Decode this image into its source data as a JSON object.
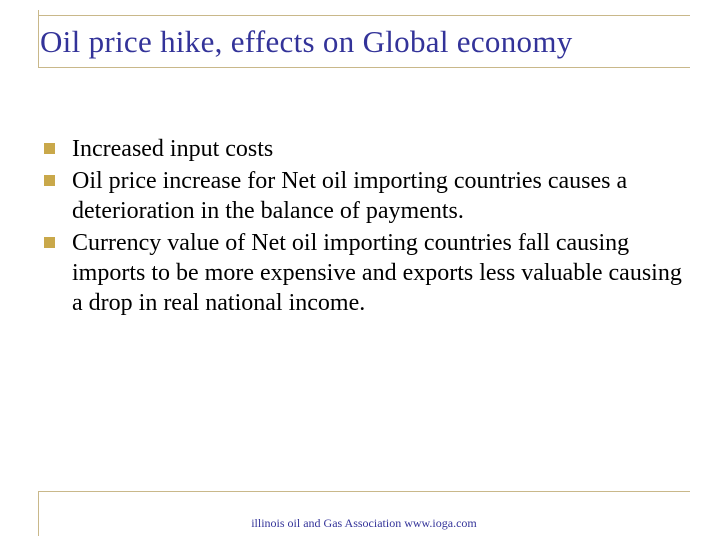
{
  "slide": {
    "title": "Oil price hike, effects on Global economy",
    "bullets": [
      "Increased input costs",
      "Oil price increase for Net oil importing countries causes a deterioration in the balance of payments.",
      "Currency value of Net oil importing countries fall causing imports to be more expensive and exports less valuable causing a drop in real national income."
    ],
    "footer": "illinois oil and Gas Association www.ioga.com"
  },
  "colors": {
    "title": "#333399",
    "rule": "#c9b88a",
    "bullet_marker": "#c9a84a",
    "text": "#000000",
    "footer": "#333399"
  }
}
